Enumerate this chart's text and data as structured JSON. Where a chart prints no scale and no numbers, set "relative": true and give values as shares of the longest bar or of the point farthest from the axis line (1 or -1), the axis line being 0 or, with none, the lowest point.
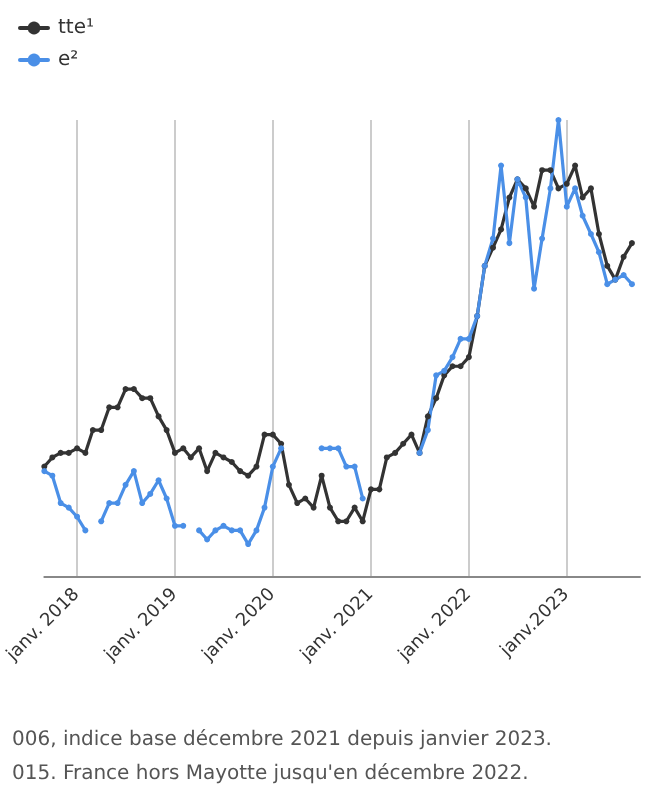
{
  "chart_data": {
    "type": "line",
    "relative": true,
    "x": [
      "2017-09",
      "2017-10",
      "2017-11",
      "2017-12",
      "2018-01",
      "2018-02",
      "2018-03",
      "2018-04",
      "2018-05",
      "2018-06",
      "2018-07",
      "2018-08",
      "2018-09",
      "2018-10",
      "2018-11",
      "2018-12",
      "2019-01",
      "2019-02",
      "2019-03",
      "2019-04",
      "2019-05",
      "2019-06",
      "2019-07",
      "2019-08",
      "2019-09",
      "2019-10",
      "2019-11",
      "2019-12",
      "2020-01",
      "2020-02",
      "2020-03",
      "2020-04",
      "2020-05",
      "2020-06",
      "2020-07",
      "2020-08",
      "2020-09",
      "2020-10",
      "2020-11",
      "2020-12",
      "2021-01",
      "2021-02",
      "2021-03",
      "2021-04",
      "2021-05",
      "2021-06",
      "2021-07",
      "2021-08",
      "2021-09",
      "2021-10",
      "2021-11",
      "2021-12",
      "2022-01",
      "2022-02",
      "2022-03",
      "2022-04",
      "2022-05",
      "2022-06",
      "2022-07",
      "2022-08",
      "2022-09",
      "2022-10",
      "2022-11",
      "2022-12",
      "2023-01",
      "2023-02",
      "2023-03",
      "2023-04",
      "2023-05",
      "2023-06",
      "2023-07",
      "2023-08",
      "2023-09"
    ],
    "series": [
      {
        "name": "tte¹",
        "color": "#333333",
        "values": [
          0.24,
          0.26,
          0.27,
          0.27,
          0.28,
          0.27,
          0.32,
          0.32,
          0.37,
          0.37,
          0.41,
          0.41,
          0.39,
          0.39,
          0.35,
          0.32,
          0.27,
          0.28,
          0.26,
          0.28,
          0.23,
          0.27,
          0.26,
          0.25,
          0.23,
          0.22,
          0.24,
          0.31,
          0.31,
          0.29,
          0.2,
          0.16,
          0.17,
          0.15,
          0.22,
          0.15,
          0.12,
          0.12,
          0.15,
          0.12,
          0.19,
          0.19,
          0.26,
          0.27,
          0.29,
          0.31,
          0.27,
          0.35,
          0.39,
          0.44,
          0.46,
          0.46,
          0.48,
          0.57,
          0.68,
          0.72,
          0.76,
          0.83,
          0.87,
          0.85,
          0.81,
          0.89,
          0.89,
          0.85,
          0.86,
          0.9,
          0.83,
          0.85,
          0.75,
          0.68,
          0.65,
          0.7,
          0.73
        ]
      },
      {
        "name": "e²",
        "color": "#4a8fe7",
        "values": [
          0.23,
          0.22,
          0.16,
          0.15,
          0.13,
          0.1,
          null,
          0.12,
          0.16,
          0.16,
          0.2,
          0.23,
          0.16,
          0.18,
          0.21,
          0.17,
          0.11,
          0.11,
          null,
          0.1,
          0.08,
          0.1,
          0.11,
          0.1,
          0.1,
          0.07,
          0.1,
          0.15,
          0.24,
          0.28,
          null,
          null,
          null,
          null,
          0.28,
          0.28,
          0.28,
          0.24,
          0.24,
          0.17,
          null,
          null,
          null,
          null,
          null,
          null,
          0.27,
          0.32,
          0.44,
          0.45,
          0.48,
          0.52,
          0.52,
          0.57,
          0.68,
          0.74,
          0.9,
          0.73,
          0.87,
          0.83,
          0.63,
          0.74,
          0.85,
          1,
          0.81,
          0.85,
          0.79,
          0.75,
          0.71,
          0.64,
          0.65,
          0.66,
          0.64
        ]
      }
    ],
    "xlim": [
      "2017-09",
      "2023-10"
    ],
    "xticks": [
      {
        "value": "2018-01",
        "label": "janv. 2018"
      },
      {
        "value": "2019-01",
        "label": "janv. 2019"
      },
      {
        "value": "2020-01",
        "label": "janv. 2020"
      },
      {
        "value": "2021-01",
        "label": "janv. 2021"
      },
      {
        "value": "2022-01",
        "label": "janv. 2022"
      },
      {
        "value": "2023-01",
        "label": "janv.2023"
      }
    ],
    "grid": "x",
    "legend": "top left",
    "marker": "circle",
    "line_style": "solid",
    "annotations": [
      "006, indice base décembre 2021 depuis janvier 2023.",
      "015. France hors Mayotte jusqu'en décembre 2022."
    ]
  }
}
